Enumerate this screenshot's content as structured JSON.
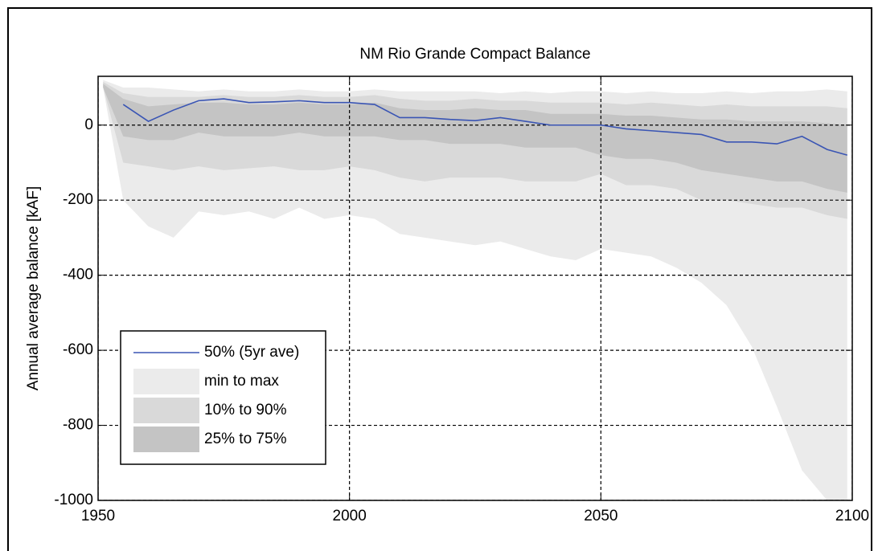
{
  "chart_data": {
    "type": "area",
    "title": "NM Rio Grande Compact Balance",
    "y_label": "Annual average balance [kAF]",
    "x": [
      1951,
      1955,
      1960,
      1965,
      1970,
      1975,
      1980,
      1985,
      1990,
      1995,
      2000,
      2005,
      2010,
      2015,
      2020,
      2025,
      2030,
      2035,
      2040,
      2045,
      2050,
      2055,
      2060,
      2065,
      2070,
      2075,
      2080,
      2085,
      2090,
      2095,
      2099
    ],
    "series": [
      {
        "name": "50% (5yr ave)",
        "color": "#3a55b4",
        "values": [
          null,
          55,
          10,
          40,
          65,
          70,
          60,
          62,
          65,
          60,
          60,
          55,
          20,
          20,
          15,
          12,
          20,
          10,
          0,
          0,
          0,
          -10,
          -15,
          -20,
          -25,
          -45,
          -45,
          -50,
          -30,
          -65,
          -80
        ]
      },
      {
        "name": "min to max",
        "color": "#ebebeb",
        "lower": [
          100,
          -200,
          -270,
          -300,
          -230,
          -240,
          -230,
          -250,
          -220,
          -250,
          -240,
          -250,
          -290,
          -300,
          -310,
          -320,
          -310,
          -330,
          -350,
          -360,
          -330,
          -340,
          -350,
          -380,
          -420,
          -480,
          -590,
          -750,
          -920,
          -1000,
          -1000
        ],
        "upper": [
          120,
          100,
          100,
          95,
          90,
          95,
          90,
          90,
          95,
          90,
          90,
          95,
          90,
          90,
          90,
          90,
          85,
          90,
          85,
          90,
          90,
          85,
          90,
          85,
          85,
          90,
          85,
          90,
          90,
          95,
          90
        ]
      },
      {
        "name": "10% to 90%",
        "color": "#d9d9d9",
        "lower": [
          100,
          -100,
          -110,
          -120,
          -110,
          -120,
          -115,
          -110,
          -120,
          -120,
          -110,
          -120,
          -140,
          -150,
          -140,
          -140,
          -140,
          -150,
          -150,
          -150,
          -130,
          -160,
          -160,
          -170,
          -200,
          -200,
          -210,
          -220,
          -220,
          -240,
          -250
        ],
        "upper": [
          115,
          85,
          75,
          75,
          75,
          80,
          75,
          75,
          80,
          75,
          75,
          80,
          70,
          65,
          65,
          70,
          65,
          65,
          60,
          60,
          60,
          55,
          60,
          55,
          50,
          55,
          50,
          50,
          50,
          50,
          45
        ]
      },
      {
        "name": "25% to 75%",
        "color": "#c4c4c4",
        "lower": [
          100,
          -30,
          -40,
          -40,
          -20,
          -30,
          -30,
          -30,
          -20,
          -30,
          -30,
          -30,
          -40,
          -40,
          -50,
          -50,
          -50,
          -60,
          -60,
          -60,
          -80,
          -90,
          -90,
          -100,
          -120,
          -130,
          -140,
          -150,
          -150,
          -170,
          -180
        ],
        "upper": [
          110,
          70,
          50,
          55,
          60,
          60,
          55,
          55,
          60,
          55,
          55,
          60,
          45,
          40,
          40,
          45,
          40,
          40,
          30,
          30,
          30,
          25,
          25,
          20,
          15,
          15,
          10,
          10,
          10,
          5,
          0
        ]
      }
    ],
    "xlim": [
      1950,
      2100
    ],
    "xticks": [
      1950,
      2000,
      2050,
      2100
    ],
    "ylim": [
      -1000,
      130
    ],
    "yticks": [
      -1000,
      -800,
      -600,
      -400,
      -200,
      0
    ],
    "grid": true,
    "legend": "lower left"
  }
}
